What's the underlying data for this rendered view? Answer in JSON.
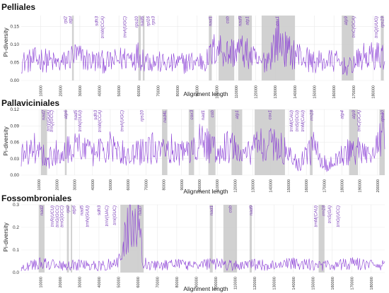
{
  "colors": {
    "series": "#8a3ed6",
    "band": "#c9c9c9",
    "gene_label": "#7b3fb8",
    "grid": "#e9e9e9"
  },
  "chart_data": [
    {
      "type": "line",
      "title": "Pelliales",
      "xlabel": "Alignment length",
      "ylabel": "Pi-diversity",
      "xlim": [
        0,
        186000
      ],
      "ylim": [
        0,
        0.18
      ],
      "xticks": [
        10000,
        20000,
        30000,
        40000,
        50000,
        60000,
        70000,
        80000,
        90000,
        100000,
        110000,
        120000,
        130000,
        140000,
        150000,
        160000,
        170000,
        180000
      ],
      "yticks": [
        0,
        0.05,
        0.1,
        0.15
      ],
      "ytick_labels": [
        "0.00",
        "0.05",
        "0.10",
        "0.15"
      ],
      "regions": [
        {
          "start": 26000,
          "end": 26900
        },
        {
          "start": 60000,
          "end": 61200
        },
        {
          "start": 62200,
          "end": 63100
        },
        {
          "start": 96000,
          "end": 97500
        },
        {
          "start": 101000,
          "end": 109000
        },
        {
          "start": 111000,
          "end": 118000
        },
        {
          "start": 123000,
          "end": 140000
        },
        {
          "start": 164000,
          "end": 170000
        },
        {
          "start": 184000,
          "end": 185500
        }
      ],
      "genes": [
        {
          "name": "rpl2",
          "x": 22500
        },
        {
          "name": "atpI",
          "x": 25000
        },
        {
          "name": "sdh3",
          "x": 38500
        },
        {
          "name": "trnW(CCA)",
          "x": 41500
        },
        {
          "name": "trnA(UGC)",
          "x": 53000
        },
        {
          "name": "rps10",
          "x": 59000
        },
        {
          "name": "nad6",
          "x": 61800
        },
        {
          "name": "rpl16",
          "x": 64800
        },
        {
          "name": "rps3",
          "x": 67500
        },
        {
          "name": "nad1",
          "x": 96800
        },
        {
          "name": "cob",
          "x": 105500
        },
        {
          "name": "nad9",
          "x": 112000
        },
        {
          "name": "atp1",
          "x": 115500
        },
        {
          "name": "cox1",
          "x": 131000
        },
        {
          "name": "atp9",
          "x": 166000
        },
        {
          "name": "trnC(GCA)",
          "x": 170000
        },
        {
          "name": "trnQ(UUG)",
          "x": 181500
        },
        {
          "name": "rps19",
          "x": 184700
        }
      ],
      "series": [
        {
          "x": [
            0,
            10000,
            20000,
            27000,
            35000,
            45000,
            55000,
            60000,
            66000,
            75000,
            85000,
            95000,
            100000,
            106000,
            112000,
            118000,
            122000,
            127000,
            131000,
            136000,
            140000,
            150000,
            160000,
            167000,
            175000,
            186000
          ],
          "values": [
            0.05,
            0.06,
            0.045,
            0.07,
            0.055,
            0.05,
            0.065,
            0.07,
            0.055,
            0.045,
            0.05,
            0.055,
            0.095,
            0.075,
            0.085,
            0.065,
            0.045,
            0.065,
            0.12,
            0.08,
            0.075,
            0.05,
            0.055,
            0.035,
            0.065,
            0.07
          ]
        }
      ]
    },
    {
      "type": "line",
      "title": "Pallaviciniales",
      "xlabel": "Alignment length",
      "ylabel": "Pi-diversity",
      "xlim": [
        0,
        204000
      ],
      "ylim": [
        0,
        0.12
      ],
      "xticks": [
        10000,
        20000,
        30000,
        40000,
        50000,
        60000,
        70000,
        80000,
        90000,
        100000,
        110000,
        120000,
        130000,
        140000,
        150000,
        160000,
        170000,
        180000,
        190000,
        200000
      ],
      "yticks": [
        0,
        0.03,
        0.06,
        0.09,
        0.12
      ],
      "ytick_labels": [
        "0.00",
        "0.03",
        "0.06",
        "0.09",
        "0.12"
      ],
      "regions": [
        {
          "start": 11000,
          "end": 14500
        },
        {
          "start": 24500,
          "end": 25500
        },
        {
          "start": 79000,
          "end": 82000
        },
        {
          "start": 94000,
          "end": 97000
        },
        {
          "start": 105000,
          "end": 109000
        },
        {
          "start": 118000,
          "end": 124000
        },
        {
          "start": 131000,
          "end": 148000
        },
        {
          "start": 162000,
          "end": 163500
        },
        {
          "start": 184000,
          "end": 189000
        },
        {
          "start": 201000,
          "end": 204000
        }
      ],
      "genes": [
        {
          "name": "nad2",
          "x": 12500
        },
        {
          "name": "trnY(GUA)",
          "x": 15200
        },
        {
          "name": "trnQ(GCC)",
          "x": 17000
        },
        {
          "name": "atp6",
          "x": 25000
        },
        {
          "name": "nad5",
          "x": 30500
        },
        {
          "name": "trnN(GUU)",
          "x": 32800
        },
        {
          "name": "sdh3",
          "x": 41500
        },
        {
          "name": "trnW(CCA)",
          "x": 44000
        },
        {
          "name": "trnA(UGC)",
          "x": 56500
        },
        {
          "name": "rps10",
          "x": 67500
        },
        {
          "name": "nad4L",
          "x": 80500
        },
        {
          "name": "cox3",
          "x": 95500
        },
        {
          "name": "nad1",
          "x": 102000
        },
        {
          "name": "cob",
          "x": 107000
        },
        {
          "name": "atp1",
          "x": 121000
        },
        {
          "name": "cox1",
          "x": 139500
        },
        {
          "name": "trnM(CAU)",
          "x": 151500
        },
        {
          "name": "trnS(GCU)",
          "x": 154800
        },
        {
          "name": "trnM(CAU)",
          "x": 157800
        },
        {
          "name": "rrn18",
          "x": 162800
        },
        {
          "name": "atp4",
          "x": 180000
        },
        {
          "name": "atp9",
          "x": 186500
        },
        {
          "name": "trnC(GCA)",
          "x": 189500
        },
        {
          "name": "rps10",
          "x": 202500
        }
      ],
      "series": [
        {
          "x": [
            0,
            8000,
            15000,
            22000,
            30000,
            40000,
            50000,
            60000,
            70000,
            80000,
            90000,
            100000,
            110000,
            118000,
            124000,
            130000,
            140000,
            148000,
            156000,
            164000,
            172000,
            180000,
            188000,
            196000,
            204000
          ],
          "values": [
            0.035,
            0.05,
            0.03,
            0.045,
            0.055,
            0.04,
            0.05,
            0.035,
            0.045,
            0.055,
            0.04,
            0.06,
            0.045,
            0.055,
            0.03,
            0.05,
            0.06,
            0.045,
            0.02,
            0.05,
            0.015,
            0.04,
            0.045,
            0.03,
            0.085
          ]
        }
      ]
    },
    {
      "type": "line",
      "title": "Fossombroniales",
      "xlabel": "Alignment length",
      "ylabel": "Pi-diversity",
      "xlim": [
        0,
        187000
      ],
      "ylim": [
        0,
        0.3
      ],
      "xticks": [
        10000,
        20000,
        30000,
        40000,
        50000,
        60000,
        70000,
        80000,
        90000,
        100000,
        110000,
        120000,
        130000,
        140000,
        150000,
        160000,
        170000,
        180000
      ],
      "yticks": [
        0,
        0.1,
        0.2,
        0.3
      ],
      "ytick_labels": [
        "0.0",
        "0.1",
        "0.2",
        "0.3"
      ],
      "regions": [
        {
          "start": 9000,
          "end": 12000
        },
        {
          "start": 23500,
          "end": 24500
        },
        {
          "start": 25500,
          "end": 26200
        },
        {
          "start": 51000,
          "end": 63000
        },
        {
          "start": 97000,
          "end": 98500
        },
        {
          "start": 104000,
          "end": 111000
        },
        {
          "start": 117500,
          "end": 118600
        },
        {
          "start": 153000,
          "end": 156000
        }
      ],
      "genes": [
        {
          "name": "nad2",
          "x": 10500
        },
        {
          "name": "trnR(UCU)",
          "x": 16000
        },
        {
          "name": "trnG(GCC)",
          "x": 18500
        },
        {
          "name": "trnG(GCC)",
          "x": 20800
        },
        {
          "name": "rpl2",
          "x": 24000
        },
        {
          "name": "atp6",
          "x": 27000
        },
        {
          "name": "nad5",
          "x": 31000
        },
        {
          "name": "trnN(GUU)",
          "x": 34000
        },
        {
          "name": "sdh3",
          "x": 40000
        },
        {
          "name": "trnV(UAC)",
          "x": 44000
        },
        {
          "name": "trnI(GUC)",
          "x": 48000
        },
        {
          "name": "nad7",
          "x": 61000
        },
        {
          "name": "nad1",
          "x": 97800
        },
        {
          "name": "cob",
          "x": 107500
        },
        {
          "name": "nad9",
          "x": 118100
        },
        {
          "name": "trnM(CAU)",
          "x": 151500
        },
        {
          "name": "rrn18",
          "x": 155500
        },
        {
          "name": "trnG(UCC)",
          "x": 163000
        },
        {
          "name": "trnS(GA)",
          "x": 158500
        }
      ],
      "series": [
        {
          "x": [
            0,
            10000,
            20000,
            30000,
            40000,
            50000,
            54000,
            57000,
            60000,
            63000,
            70000,
            80000,
            90000,
            100000,
            110000,
            120000,
            130000,
            140000,
            150000,
            160000,
            170000,
            180000,
            187000
          ],
          "values": [
            0.02,
            0.04,
            0.03,
            0.035,
            0.03,
            0.04,
            0.18,
            0.26,
            0.22,
            0.04,
            0.03,
            0.035,
            0.03,
            0.04,
            0.03,
            0.035,
            0.03,
            0.04,
            0.035,
            0.03,
            0.04,
            0.035,
            0.03
          ]
        }
      ]
    }
  ]
}
